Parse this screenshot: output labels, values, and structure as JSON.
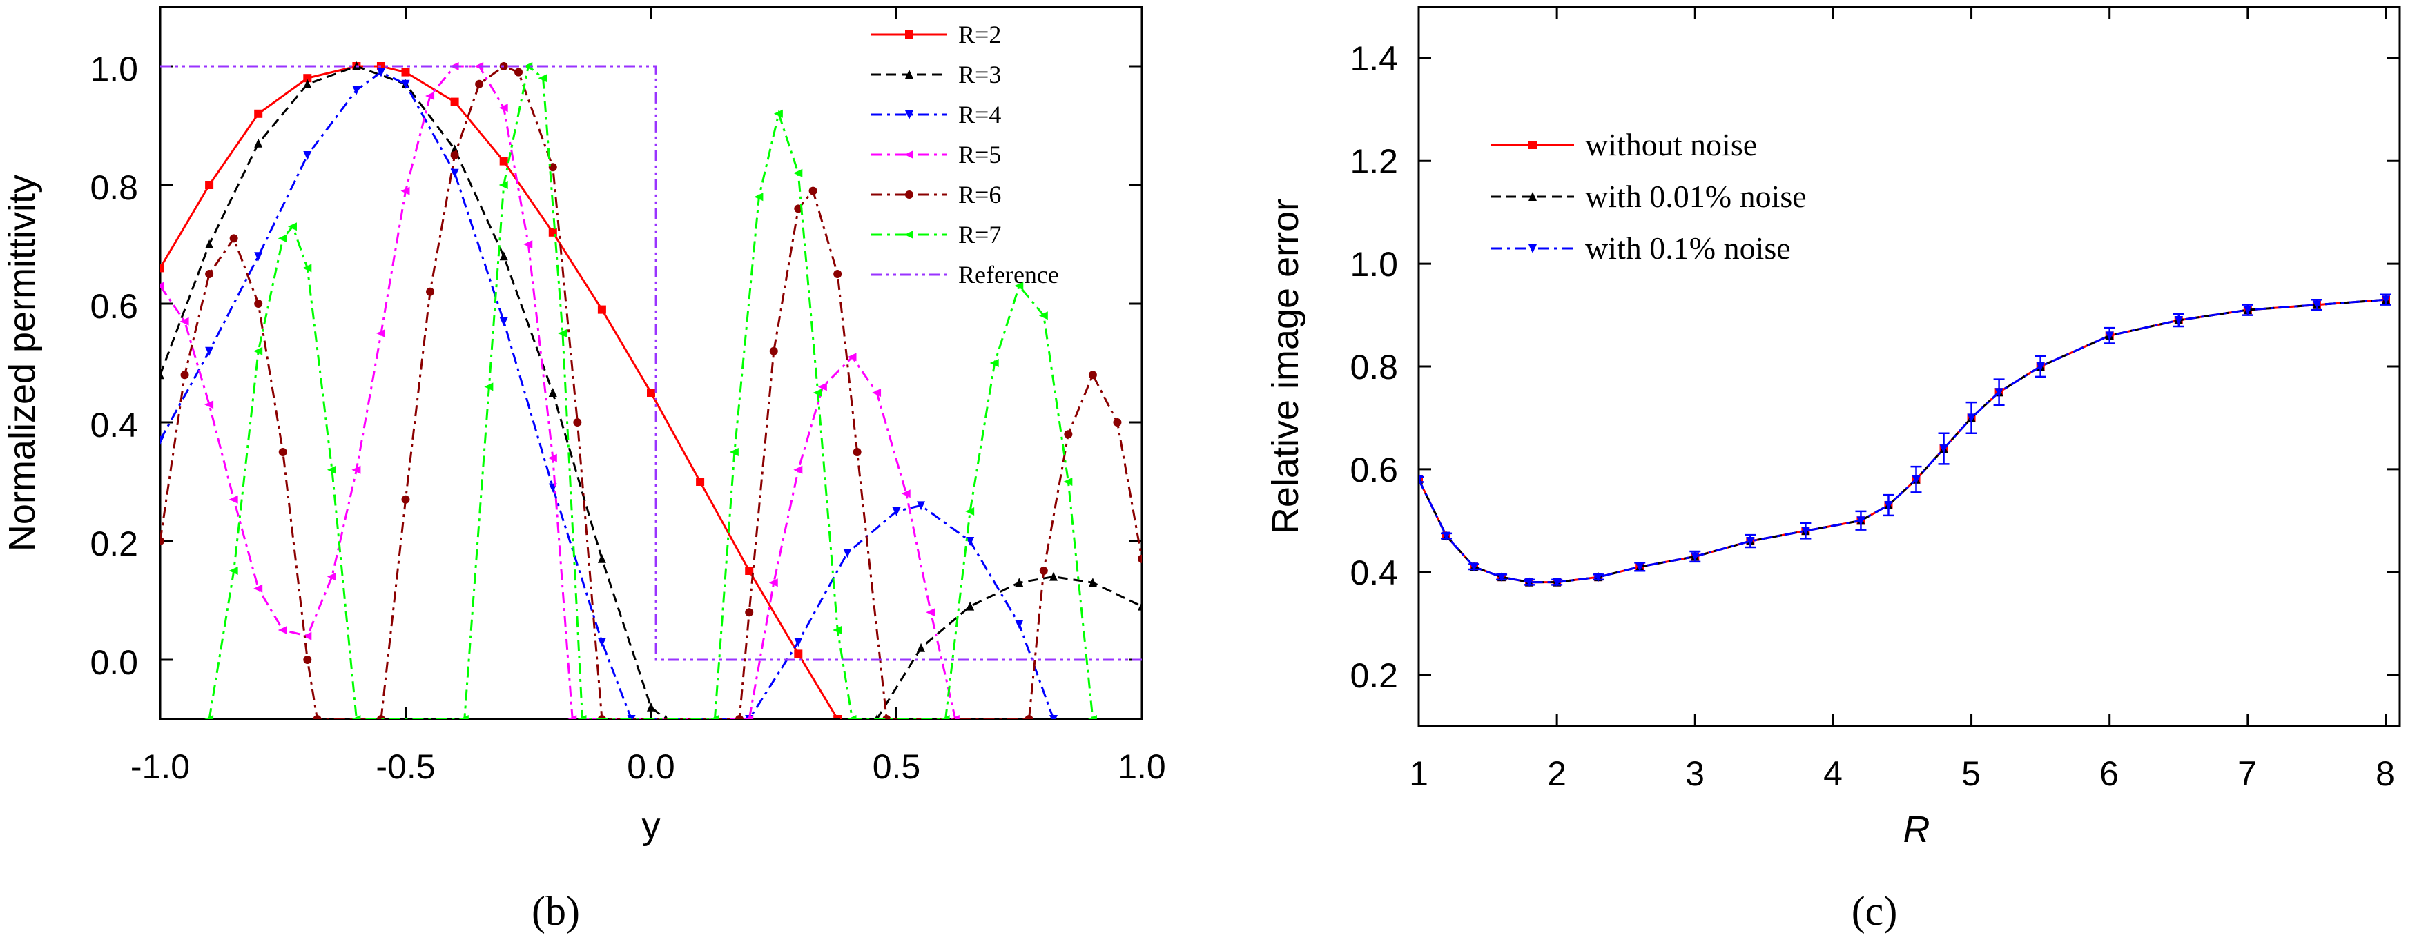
{
  "chart_data": [
    {
      "panel": "(b)",
      "type": "line",
      "title": "",
      "xlabel": "y",
      "ylabel": "Normalized permittivity",
      "xlim": [
        -1.0,
        1.0
      ],
      "ylim": [
        -0.1,
        1.1
      ],
      "xticks": [
        -1.0,
        -0.5,
        0.0,
        0.5,
        1.0
      ],
      "xtick_labels": [
        "-1.0",
        "-0.5",
        "0.0",
        "0.5",
        "1.0"
      ],
      "yticks": [
        0.0,
        0.2,
        0.4,
        0.6,
        0.8,
        1.0
      ],
      "ytick_labels": [
        "0.0",
        "0.2",
        "0.4",
        "0.6",
        "0.8",
        "1.0"
      ],
      "legend_position": "top-right",
      "caption": "(b)",
      "series": [
        {
          "name": "R=2",
          "color": "#ff0000",
          "dash": "solid",
          "marker": "square",
          "x": [
            -1.0,
            -0.9,
            -0.8,
            -0.7,
            -0.6,
            -0.55,
            -0.5,
            -0.4,
            -0.3,
            -0.2,
            -0.1,
            0.0,
            0.1,
            0.2,
            0.3,
            0.38
          ],
          "y": [
            0.66,
            0.8,
            0.92,
            0.98,
            1.0,
            1.0,
            0.99,
            0.94,
            0.84,
            0.72,
            0.59,
            0.45,
            0.3,
            0.15,
            0.01,
            -0.1
          ]
        },
        {
          "name": "R=3",
          "color": "#000000",
          "dash": "dash",
          "marker": "triangle-up",
          "x": [
            -1.0,
            -0.9,
            -0.8,
            -0.7,
            -0.6,
            -0.5,
            -0.4,
            -0.3,
            -0.2,
            -0.1,
            0.0,
            0.03,
            0.46,
            0.55,
            0.65,
            0.75,
            0.82,
            0.9,
            1.0
          ],
          "y": [
            0.48,
            0.7,
            0.87,
            0.97,
            1.0,
            0.97,
            0.86,
            0.68,
            0.45,
            0.17,
            -0.08,
            -0.1,
            -0.1,
            0.02,
            0.09,
            0.13,
            0.14,
            0.13,
            0.09
          ]
        },
        {
          "name": "R=4",
          "color": "#0000ff",
          "dash": "dashdot",
          "marker": "triangle-down",
          "x": [
            -1.0,
            -0.9,
            -0.8,
            -0.7,
            -0.6,
            -0.55,
            -0.5,
            -0.4,
            -0.3,
            -0.2,
            -0.1,
            -0.04,
            0.2,
            0.3,
            0.4,
            0.5,
            0.55,
            0.65,
            0.75,
            0.82
          ],
          "y": [
            0.37,
            0.52,
            0.68,
            0.85,
            0.96,
            0.99,
            0.97,
            0.82,
            0.57,
            0.29,
            0.03,
            -0.1,
            -0.1,
            0.03,
            0.18,
            0.25,
            0.26,
            0.2,
            0.06,
            -0.1
          ]
        },
        {
          "name": "R=5",
          "color": "#ff00ff",
          "dash": "dashdot",
          "marker": "triangle-left",
          "x": [
            -1.0,
            -0.95,
            -0.9,
            -0.85,
            -0.8,
            -0.75,
            -0.7,
            -0.65,
            -0.6,
            -0.55,
            -0.5,
            -0.45,
            -0.4,
            -0.35,
            -0.3,
            -0.25,
            -0.2,
            -0.16,
            0.2,
            0.25,
            0.3,
            0.35,
            0.41,
            0.46,
            0.52,
            0.57,
            0.62
          ],
          "y": [
            0.63,
            0.57,
            0.43,
            0.27,
            0.12,
            0.05,
            0.04,
            0.14,
            0.32,
            0.55,
            0.79,
            0.95,
            1.0,
            1.0,
            0.93,
            0.7,
            0.34,
            -0.1,
            -0.1,
            0.13,
            0.32,
            0.46,
            0.51,
            0.45,
            0.28,
            0.08,
            -0.1
          ]
        },
        {
          "name": "R=6",
          "color": "#8b0000",
          "dash": "dashdot",
          "marker": "circle",
          "x": [
            -1.0,
            -0.95,
            -0.9,
            -0.85,
            -0.8,
            -0.75,
            -0.7,
            -0.68,
            -0.55,
            -0.5,
            -0.45,
            -0.4,
            -0.35,
            -0.3,
            -0.27,
            -0.2,
            -0.15,
            -0.1,
            0.18,
            0.2,
            0.25,
            0.3,
            0.33,
            0.38,
            0.42,
            0.48,
            0.77,
            0.8,
            0.85,
            0.9,
            0.95,
            1.0
          ],
          "y": [
            0.2,
            0.48,
            0.65,
            0.71,
            0.6,
            0.35,
            0.0,
            -0.1,
            -0.1,
            0.27,
            0.62,
            0.85,
            0.97,
            1.0,
            0.99,
            0.83,
            0.4,
            -0.1,
            -0.1,
            0.08,
            0.52,
            0.76,
            0.79,
            0.65,
            0.35,
            -0.1,
            -0.1,
            0.15,
            0.38,
            0.48,
            0.4,
            0.17
          ]
        },
        {
          "name": "R=7",
          "color": "#00ff00",
          "dash": "dashdot",
          "marker": "triangle-left",
          "x": [
            -0.9,
            -0.85,
            -0.8,
            -0.75,
            -0.73,
            -0.7,
            -0.65,
            -0.6,
            -0.38,
            -0.33,
            -0.3,
            -0.25,
            -0.22,
            -0.18,
            -0.14,
            0.13,
            0.17,
            0.22,
            0.26,
            0.3,
            0.34,
            0.38,
            0.41,
            0.6,
            0.65,
            0.7,
            0.75,
            0.8,
            0.85,
            0.9
          ],
          "y": [
            -0.1,
            0.15,
            0.52,
            0.71,
            0.73,
            0.66,
            0.32,
            -0.1,
            -0.1,
            0.46,
            0.8,
            1.0,
            0.98,
            0.55,
            -0.1,
            -0.1,
            0.35,
            0.78,
            0.92,
            0.82,
            0.45,
            0.05,
            -0.1,
            -0.1,
            0.25,
            0.5,
            0.63,
            0.58,
            0.3,
            -0.1
          ]
        },
        {
          "name": "Reference",
          "color": "#9933ff",
          "dash": "dashdotdot",
          "marker": "none",
          "x": [
            -1.0,
            0.0,
            0.0,
            0.01,
            0.01,
            1.0
          ],
          "y": [
            1.0,
            1.0,
            1.0,
            1.0,
            0.0,
            0.0
          ]
        }
      ]
    },
    {
      "panel": "(c)",
      "type": "line",
      "title": "",
      "xlabel": "R",
      "ylabel": "Relative image error",
      "xlim": [
        1,
        8.1
      ],
      "ylim": [
        0.1,
        1.5
      ],
      "xticks": [
        1,
        2,
        3,
        4,
        5,
        6,
        7,
        8
      ],
      "xtick_labels": [
        "1",
        "2",
        "3",
        "4",
        "5",
        "6",
        "7",
        "8"
      ],
      "yticks": [
        0.2,
        0.4,
        0.6,
        0.8,
        1.0,
        1.2,
        1.4
      ],
      "ytick_labels": [
        "0.2",
        "0.4",
        "0.6",
        "0.8",
        "1.0",
        "1.2",
        "1.4"
      ],
      "legend_position": "top-left",
      "caption": "(c)",
      "x": [
        1.0,
        1.2,
        1.4,
        1.6,
        1.8,
        2.0,
        2.3,
        2.6,
        3.0,
        3.4,
        3.8,
        4.2,
        4.4,
        4.6,
        4.8,
        5.0,
        5.2,
        5.5,
        6.0,
        6.5,
        7.0,
        7.5,
        8.0
      ],
      "series": [
        {
          "name": "without noise",
          "color": "#ff0000",
          "dash": "solid",
          "marker": "square",
          "values": [
            0.58,
            0.47,
            0.41,
            0.39,
            0.38,
            0.38,
            0.39,
            0.41,
            0.43,
            0.46,
            0.48,
            0.5,
            0.53,
            0.58,
            0.64,
            0.7,
            0.75,
            0.8,
            0.86,
            0.89,
            0.91,
            0.92,
            0.93
          ]
        },
        {
          "name": "with 0.01% noise",
          "color": "#000000",
          "dash": "dash",
          "marker": "triangle-up",
          "values": [
            0.58,
            0.47,
            0.41,
            0.39,
            0.38,
            0.38,
            0.39,
            0.41,
            0.43,
            0.46,
            0.48,
            0.5,
            0.53,
            0.58,
            0.64,
            0.7,
            0.75,
            0.8,
            0.86,
            0.89,
            0.91,
            0.92,
            0.93
          ]
        },
        {
          "name": "with 0.1% noise",
          "color": "#0000ff",
          "dash": "dashdot",
          "marker": "triangle-down",
          "values": [
            0.58,
            0.47,
            0.41,
            0.39,
            0.38,
            0.38,
            0.39,
            0.41,
            0.43,
            0.46,
            0.48,
            0.5,
            0.53,
            0.58,
            0.64,
            0.7,
            0.75,
            0.8,
            0.86,
            0.89,
            0.91,
            0.92,
            0.93
          ],
          "error": [
            0.005,
            0.005,
            0.005,
            0.005,
            0.005,
            0.005,
            0.005,
            0.008,
            0.01,
            0.012,
            0.015,
            0.018,
            0.02,
            0.025,
            0.03,
            0.03,
            0.025,
            0.02,
            0.015,
            0.012,
            0.01,
            0.01,
            0.01
          ]
        }
      ]
    }
  ]
}
